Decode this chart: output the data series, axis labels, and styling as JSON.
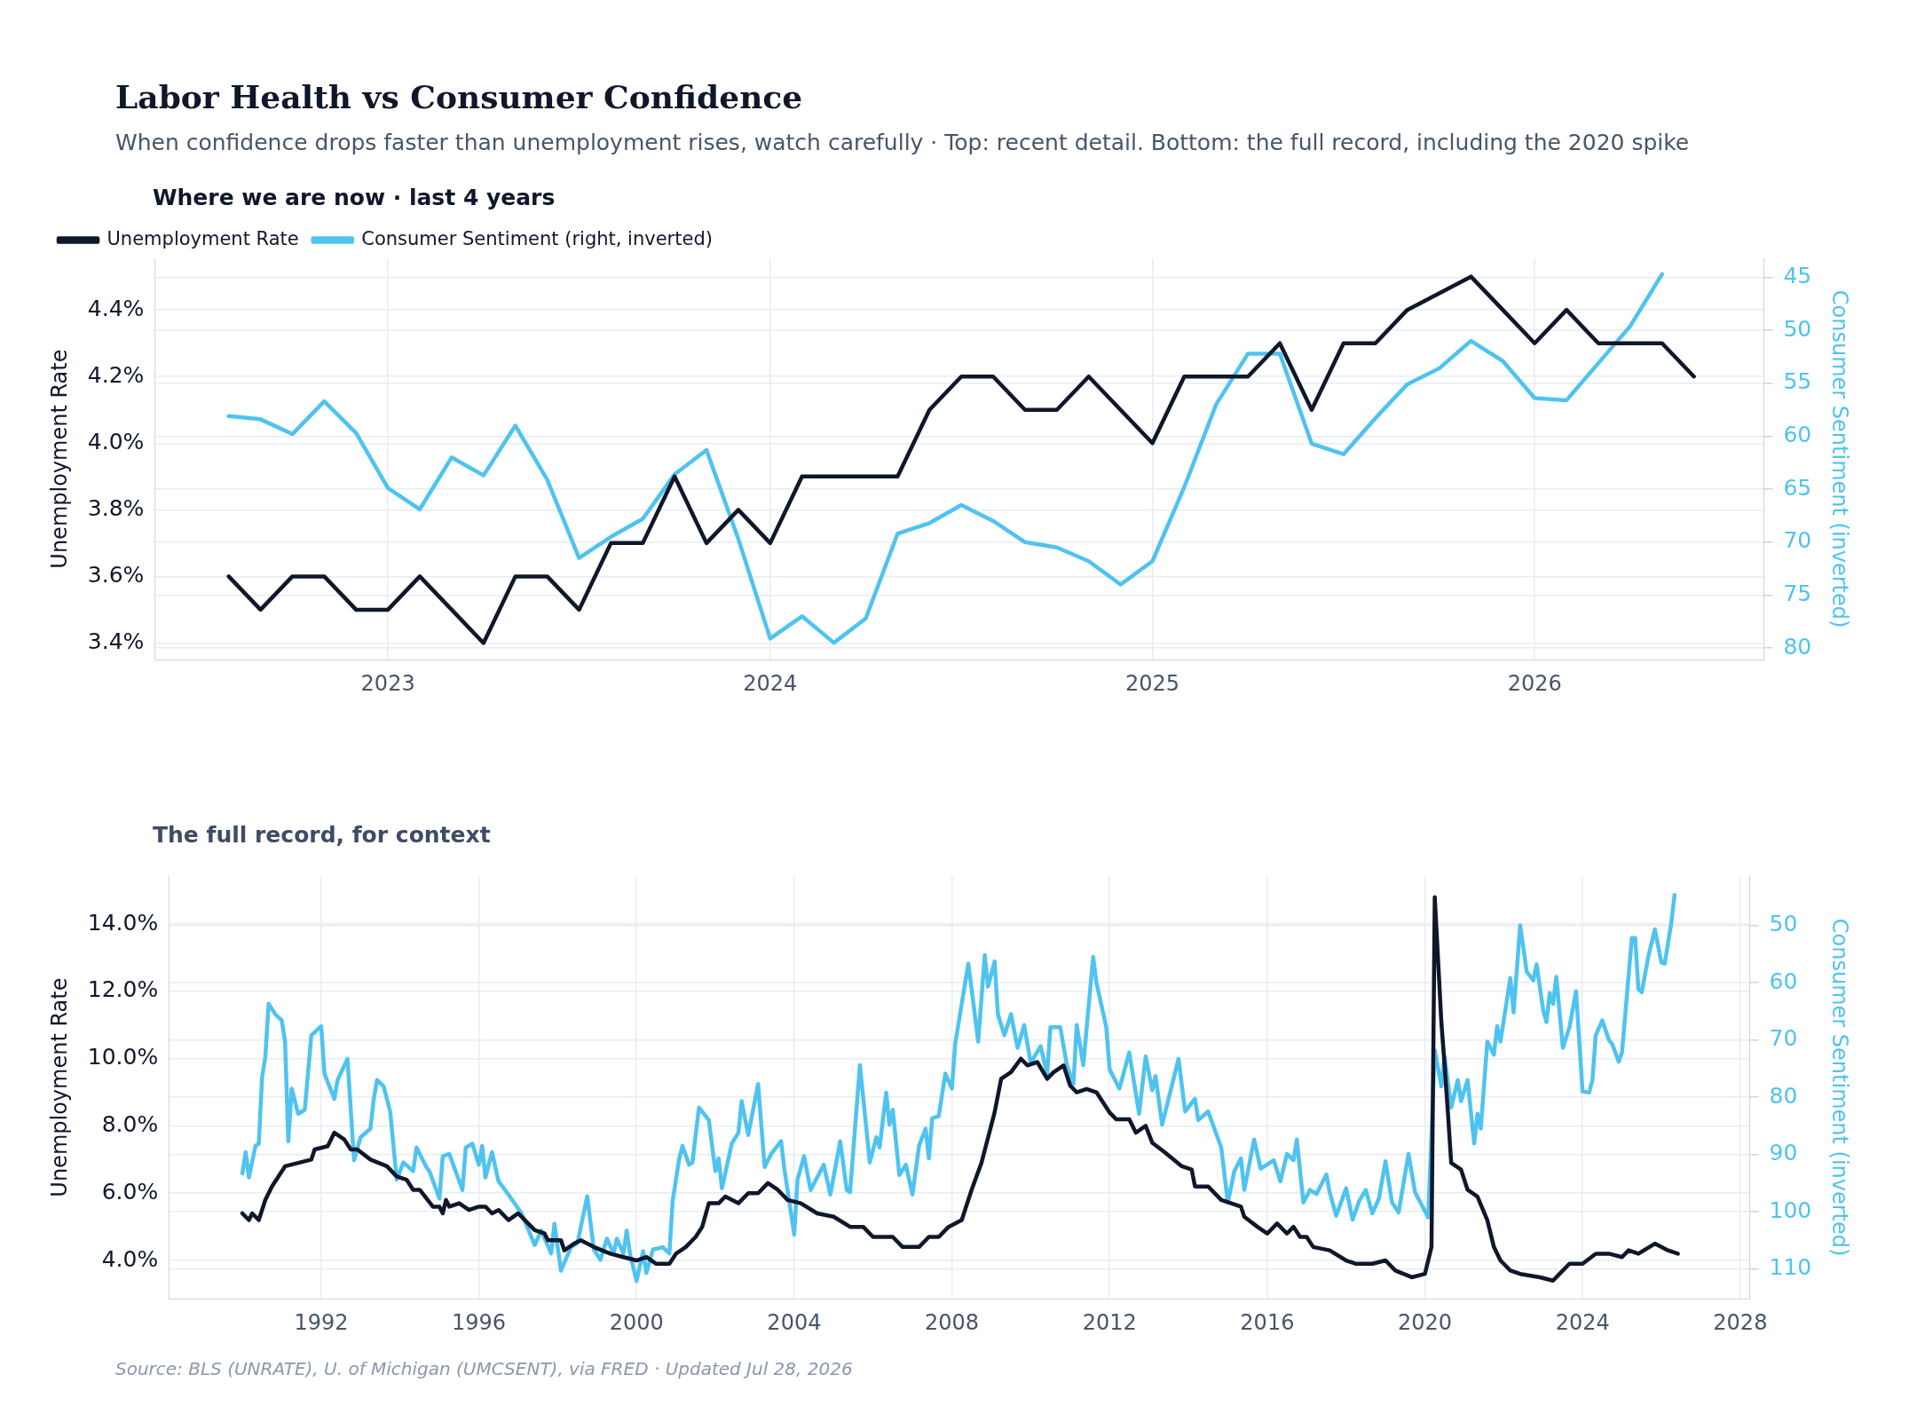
{
  "chart_data": [
    {
      "type": "line",
      "title": "Labor Health vs Consumer Confidence",
      "subtitle": "When confidence drops faster than unemployment rises, watch carefully · Top: recent detail. Bottom: the full record, including the 2020 spike",
      "annotations": [
        "Where we are now · last 4 years"
      ],
      "ylabel": "Unemployment Rate",
      "y2label": "Consumer Sentiment (inverted)",
      "legend": "top left",
      "grid": true,
      "xlim": [
        "2022-05-22",
        "2026-08-07"
      ],
      "xticks": [
        "2023",
        "2024",
        "2025",
        "2026"
      ],
      "ylim": [
        3.35,
        4.555
      ],
      "yticks": [
        {
          "value": 3.4,
          "label": "3.4%"
        },
        {
          "value": 3.6,
          "label": "3.6%"
        },
        {
          "value": 3.8,
          "label": "3.8%"
        },
        {
          "value": 4.0,
          "label": "4.0%"
        },
        {
          "value": 4.2,
          "label": "4.2%"
        },
        {
          "value": 4.4,
          "label": "4.4%"
        }
      ],
      "y2lim": [
        81.1,
        43.2
      ],
      "y2ticks": [
        45,
        50,
        55,
        60,
        65,
        70,
        75,
        80
      ],
      "series": [
        {
          "name": "Unemployment Rate",
          "color": "#0f172a",
          "x": [
            "2022-08",
            "2022-09",
            "2022-10",
            "2022-11",
            "2022-12",
            "2023-01",
            "2023-02",
            "2023-03",
            "2023-04",
            "2023-05",
            "2023-06",
            "2023-07",
            "2023-08",
            "2023-09",
            "2023-10",
            "2023-11",
            "2023-12",
            "2024-01",
            "2024-02",
            "2024-03",
            "2024-04",
            "2024-05",
            "2024-06",
            "2024-07",
            "2024-08",
            "2024-09",
            "2024-10",
            "2024-11",
            "2024-12",
            "2025-01",
            "2025-02",
            "2025-03",
            "2025-04",
            "2025-05",
            "2025-06",
            "2025-07",
            "2025-08",
            "2025-09",
            "2025-11",
            "2025-12",
            "2026-01",
            "2026-02",
            "2026-03",
            "2026-04",
            "2026-05",
            "2026-06"
          ],
          "values": [
            3.6,
            3.5,
            3.6,
            3.6,
            3.5,
            3.5,
            3.6,
            3.5,
            3.4,
            3.6,
            3.6,
            3.5,
            3.7,
            3.7,
            3.9,
            3.7,
            3.8,
            3.7,
            3.9,
            3.9,
            3.9,
            3.9,
            4.1,
            4.2,
            4.2,
            4.1,
            4.1,
            4.2,
            4.1,
            4.0,
            4.2,
            4.2,
            4.2,
            4.3,
            4.1,
            4.3,
            4.3,
            4.4,
            4.5,
            4.4,
            4.3,
            4.4,
            4.3,
            4.3,
            4.3,
            4.2
          ]
        },
        {
          "name": "Consumer Sentiment (right, inverted)",
          "color": "#4fc3f0",
          "axis": "y2",
          "x": [
            "2022-08",
            "2022-09",
            "2022-10",
            "2022-11",
            "2022-12",
            "2023-01",
            "2023-02",
            "2023-03",
            "2023-04",
            "2023-05",
            "2023-06",
            "2023-07",
            "2023-08",
            "2023-09",
            "2023-10",
            "2023-11",
            "2023-12",
            "2024-01",
            "2024-02",
            "2024-03",
            "2024-04",
            "2024-05",
            "2024-06",
            "2024-07",
            "2024-08",
            "2024-09",
            "2024-10",
            "2024-11",
            "2024-12",
            "2025-01",
            "2025-02",
            "2025-03",
            "2025-04",
            "2025-05",
            "2025-06",
            "2025-07",
            "2025-08",
            "2025-09",
            "2025-10",
            "2025-11",
            "2025-12",
            "2026-01",
            "2026-02",
            "2026-03",
            "2026-04",
            "2026-05"
          ],
          "values": [
            58.1,
            58.4,
            59.8,
            56.7,
            59.7,
            64.9,
            66.9,
            62.0,
            63.7,
            59.0,
            64.1,
            71.5,
            69.5,
            67.8,
            63.6,
            61.3,
            69.7,
            79.1,
            77.0,
            79.5,
            77.2,
            69.2,
            68.2,
            66.5,
            68.0,
            70.0,
            70.5,
            71.8,
            74.0,
            71.8,
            64.8,
            57.0,
            52.2,
            52.2,
            60.7,
            61.7,
            58.3,
            55.1,
            53.6,
            51.0,
            52.9,
            56.4,
            56.6,
            53.1,
            49.6,
            44.7
          ]
        }
      ]
    },
    {
      "type": "line",
      "title": "The full record, for context",
      "annotations": [
        "Source: BLS (UNRATE), U. of Michigan (UMCSENT), via FRED · Updated Jul 28, 2026"
      ],
      "ylabel": "Unemployment Rate",
      "y2label": "Consumer Sentiment (inverted)",
      "grid": true,
      "xlim": [
        "1988-02-20",
        "2028-03-28"
      ],
      "xticks": [
        "1992",
        "1996",
        "2000",
        "2004",
        "2008",
        "2012",
        "2016",
        "2020",
        "2024",
        "2028"
      ],
      "ylim": [
        2.86,
        15.43
      ],
      "yticks": [
        {
          "value": 4,
          "label": "4.0%"
        },
        {
          "value": 6,
          "label": "6.0%"
        },
        {
          "value": 8,
          "label": "8.0%"
        },
        {
          "value": 10,
          "label": "10.0%"
        },
        {
          "value": 12,
          "label": "12.0%"
        },
        {
          "value": 14,
          "label": "14.0%"
        }
      ],
      "y2lim": [
        115.2,
        41.4
      ],
      "y2ticks": [
        50,
        60,
        70,
        80,
        90,
        100,
        110
      ],
      "series": [
        {
          "color": "#0f172a",
          "x": [
            "1990-01",
            "1990-03",
            "1990-04",
            "1990-06",
            "1990-08",
            "1990-10",
            "1991-02",
            "1991-06",
            "1991-10",
            "1991-11",
            "1992-03",
            "1992-05",
            "1992-08",
            "1992-10",
            "1992-12",
            "1993-04",
            "1993-09",
            "1993-12",
            "1994-03",
            "1994-05",
            "1994-07",
            "1994-11",
            "1995-01",
            "1995-02",
            "1995-03",
            "1995-04",
            "1995-07",
            "1995-10",
            "1996-01",
            "1996-03",
            "1996-05",
            "1996-07",
            "1996-10",
            "1997-01",
            "1997-04",
            "1997-06",
            "1997-09",
            "1997-10",
            "1998-02",
            "1998-03",
            "1998-06",
            "1998-08",
            "1998-12",
            "1999-05",
            "1999-09",
            "2000-01",
            "2000-04",
            "2000-07",
            "2000-11",
            "2001-01",
            "2001-04",
            "2001-07",
            "2001-09",
            "2001-11",
            "2002-02",
            "2002-04",
            "2002-08",
            "2002-11",
            "2003-02",
            "2003-05",
            "2003-08",
            "2003-11",
            "2004-03",
            "2004-08",
            "2005-01",
            "2005-06",
            "2005-10",
            "2006-01",
            "2006-07",
            "2006-10",
            "2007-03",
            "2007-06",
            "2007-09",
            "2007-12",
            "2008-04",
            "2008-07",
            "2008-10",
            "2009-02",
            "2009-04",
            "2009-07",
            "2009-10",
            "2009-12",
            "2010-03",
            "2010-06",
            "2010-08",
            "2010-11",
            "2011-01",
            "2011-03",
            "2011-06",
            "2011-09",
            "2012-01",
            "2012-03",
            "2012-07",
            "2012-09",
            "2012-12",
            "2013-02",
            "2013-06",
            "2013-11",
            "2014-02",
            "2014-03",
            "2014-07",
            "2014-11",
            "2015-02",
            "2015-05",
            "2015-06",
            "2015-10",
            "2016-01",
            "2016-04",
            "2016-07",
            "2016-09",
            "2016-11",
            "2017-01",
            "2017-03",
            "2017-08",
            "2018-01",
            "2018-04",
            "2018-09",
            "2019-01",
            "2019-04",
            "2019-09",
            "2020-01",
            "2020-03",
            "2020-04",
            "2020-06",
            "2020-07",
            "2020-08",
            "2020-09",
            "2020-12",
            "2021-02",
            "2021-05",
            "2021-08",
            "2021-10",
            "2021-12",
            "2022-03",
            "2022-06",
            "2022-12",
            "2023-04",
            "2023-06",
            "2023-09",
            "2024-01",
            "2024-05",
            "2024-09",
            "2025-01",
            "2025-03",
            "2025-06",
            "2025-11",
            "2026-03",
            "2026-06"
          ],
          "values": [
            5.4,
            5.2,
            5.4,
            5.2,
            5.8,
            6.2,
            6.8,
            6.9,
            7.0,
            7.3,
            7.4,
            7.8,
            7.6,
            7.3,
            7.3,
            7.0,
            6.8,
            6.5,
            6.4,
            6.1,
            6.1,
            5.6,
            5.6,
            5.4,
            5.8,
            5.6,
            5.7,
            5.5,
            5.6,
            5.6,
            5.4,
            5.5,
            5.2,
            5.4,
            5.1,
            4.9,
            4.8,
            4.6,
            4.6,
            4.3,
            4.5,
            4.6,
            4.4,
            4.2,
            4.1,
            4.0,
            4.1,
            3.9,
            3.9,
            4.2,
            4.4,
            4.7,
            5.0,
            5.7,
            5.7,
            5.9,
            5.7,
            6.0,
            6.0,
            6.3,
            6.1,
            5.8,
            5.7,
            5.4,
            5.3,
            5.0,
            5.0,
            4.7,
            4.7,
            4.4,
            4.4,
            4.7,
            4.7,
            5.0,
            5.2,
            6.1,
            6.9,
            8.4,
            9.4,
            9.6,
            10.0,
            9.8,
            9.9,
            9.4,
            9.6,
            9.8,
            9.2,
            9.0,
            9.1,
            9.0,
            8.4,
            8.2,
            8.2,
            7.8,
            8.0,
            7.5,
            7.2,
            6.8,
            6.7,
            6.2,
            6.2,
            5.8,
            5.7,
            5.6,
            5.3,
            5.0,
            4.8,
            5.1,
            4.8,
            5.0,
            4.7,
            4.7,
            4.4,
            4.3,
            4.0,
            3.9,
            3.9,
            4.0,
            3.7,
            3.5,
            3.6,
            4.4,
            14.8,
            11.1,
            9.8,
            8.4,
            6.9,
            6.7,
            6.1,
            5.9,
            5.2,
            4.4,
            4.0,
            3.7,
            3.6,
            3.5,
            3.4,
            3.6,
            3.9,
            3.9,
            4.2,
            4.2,
            4.1,
            4.3,
            4.2,
            4.5,
            4.3,
            4.2
          ]
        },
        {
          "color": "#4fc3f0",
          "axis": "y2",
          "x": [
            "1990-01",
            "1990-02",
            "1990-03",
            "1990-05",
            "1990-06",
            "1990-07",
            "1990-08",
            "1990-09",
            "1990-11",
            "1991-01",
            "1991-02",
            "1991-03",
            "1991-04",
            "1991-06",
            "1991-08",
            "1991-10",
            "1992-01",
            "1992-02",
            "1992-05",
            "1992-06",
            "1992-09",
            "1992-11",
            "1993-01",
            "1993-04",
            "1993-05",
            "1993-06",
            "1993-08",
            "1993-10",
            "1993-12",
            "1994-02",
            "1994-05",
            "1994-06",
            "1994-09",
            "1994-10",
            "1995-01",
            "1995-02",
            "1995-04",
            "1995-08",
            "1995-09",
            "1995-11",
            "1996-01",
            "1996-02",
            "1996-03",
            "1996-05",
            "1996-07",
            "1996-10",
            "1997-02",
            "1997-06",
            "1997-08",
            "1997-11",
            "1997-12",
            "1998-02",
            "1998-05",
            "1998-07",
            "1998-10",
            "1998-12",
            "1999-02",
            "1999-04",
            "1999-06",
            "1999-07",
            "1999-09",
            "1999-10",
            "1999-11",
            "2000-01",
            "2000-03",
            "2000-04",
            "2000-06",
            "2000-09",
            "2000-11",
            "2000-12",
            "2001-02",
            "2001-03",
            "2001-05",
            "2001-06",
            "2001-08",
            "2001-11",
            "2002-01",
            "2002-02",
            "2002-03",
            "2002-06",
            "2002-08",
            "2002-09",
            "2002-11",
            "2003-02",
            "2003-04",
            "2003-06",
            "2003-09",
            "2003-10",
            "2004-01",
            "2004-02",
            "2004-04",
            "2004-06",
            "2004-10",
            "2004-12",
            "2005-03",
            "2005-05",
            "2005-06",
            "2005-09",
            "2005-12",
            "2006-02",
            "2006-03",
            "2006-05",
            "2006-06",
            "2006-07",
            "2006-09",
            "2006-11",
            "2007-01",
            "2007-03",
            "2007-05",
            "2007-06",
            "2007-07",
            "2007-09",
            "2007-11",
            "2008-01",
            "2008-02",
            "2008-06",
            "2008-07",
            "2008-09",
            "2008-11",
            "2008-12",
            "2009-02",
            "2009-03",
            "2009-05",
            "2009-07",
            "2009-09",
            "2009-11",
            "2010-01",
            "2010-04",
            "2010-06",
            "2010-07",
            "2010-10",
            "2010-12",
            "2011-02",
            "2011-03",
            "2011-05",
            "2011-08",
            "2011-09",
            "2011-12",
            "2012-01",
            "2012-04",
            "2012-07",
            "2012-10",
            "2012-12",
            "2013-02",
            "2013-03",
            "2013-05",
            "2013-10",
            "2013-12",
            "2014-03",
            "2014-04",
            "2014-07",
            "2014-11",
            "2015-01",
            "2015-03",
            "2015-05",
            "2015-06",
            "2015-09",
            "2015-11",
            "2016-03",
            "2016-05",
            "2016-07",
            "2016-09",
            "2016-10",
            "2016-12",
            "2017-02",
            "2017-04",
            "2017-07",
            "2017-08",
            "2017-10",
            "2018-01",
            "2018-03",
            "2018-05",
            "2018-07",
            "2018-09",
            "2018-11",
            "2019-01",
            "2019-03",
            "2019-05",
            "2019-08",
            "2019-10",
            "2020-02",
            "2020-04",
            "2020-06",
            "2020-07",
            "2020-09",
            "2020-11",
            "2020-12",
            "2021-02",
            "2021-04",
            "2021-05",
            "2021-06",
            "2021-08",
            "2021-10",
            "2021-11",
            "2021-12",
            "2022-03",
            "2022-04",
            "2022-06",
            "2022-08",
            "2022-10",
            "2022-11",
            "2023-01",
            "2023-02",
            "2023-03",
            "2023-04",
            "2023-05",
            "2023-07",
            "2023-09",
            "2023-11",
            "2024-01",
            "2024-03",
            "2024-04",
            "2024-05",
            "2024-07",
            "2024-09",
            "2024-10",
            "2024-12",
            "2025-01",
            "2025-04",
            "2025-05",
            "2025-06",
            "2025-07",
            "2025-09",
            "2025-11",
            "2026-01",
            "2026-02",
            "2026-04",
            "2026-05"
          ],
          "values": [
            93.3,
            89.6,
            94.0,
            88.5,
            88.1,
            76.6,
            72.9,
            63.7,
            65.5,
            66.6,
            70.3,
            87.7,
            78.5,
            82.9,
            82.2,
            69.2,
            67.6,
            75.9,
            80.3,
            77.0,
            73.3,
            91.0,
            87.0,
            85.5,
            80.3,
            77.0,
            78.1,
            82.5,
            94.4,
            91.4,
            92.9,
            88.8,
            92.2,
            93.0,
            97.7,
            90.3,
            89.9,
            96.2,
            88.8,
            88.1,
            91.8,
            88.5,
            94.0,
            89.6,
            94.7,
            97.0,
            100.3,
            105.8,
            103.3,
            107.3,
            102.1,
            110.3,
            106.2,
            105.5,
            97.3,
            106.6,
            108.4,
            104.7,
            107.3,
            104.7,
            107.3,
            103.3,
            107.3,
            112.1,
            106.9,
            110.7,
            106.6,
            106.2,
            107.3,
            98.1,
            90.7,
            88.5,
            91.8,
            91.4,
            81.8,
            84.0,
            92.9,
            90.7,
            95.9,
            88.1,
            86.2,
            80.7,
            86.6,
            77.7,
            92.2,
            89.9,
            87.7,
            92.5,
            104.0,
            94.4,
            90.3,
            96.2,
            91.8,
            97.0,
            87.7,
            96.2,
            96.6,
            74.4,
            91.4,
            87.0,
            88.8,
            79.2,
            84.8,
            82.2,
            93.6,
            91.8,
            97.0,
            88.5,
            85.5,
            90.7,
            83.7,
            83.3,
            75.9,
            78.5,
            70.7,
            56.7,
            61.1,
            70.3,
            55.2,
            60.7,
            56.3,
            65.5,
            69.2,
            65.5,
            71.4,
            67.4,
            74.0,
            71.1,
            75.9,
            67.8,
            67.8,
            74.4,
            77.7,
            67.4,
            74.4,
            55.5,
            60.0,
            67.8,
            75.1,
            78.5,
            72.2,
            82.9,
            72.9,
            78.8,
            76.3,
            84.8,
            73.3,
            82.5,
            80.3,
            84.0,
            82.5,
            88.8,
            98.4,
            92.9,
            90.7,
            96.2,
            87.4,
            92.5,
            91.0,
            94.7,
            89.9,
            91.0,
            87.4,
            98.4,
            96.2,
            96.9,
            93.5,
            96.6,
            100.7,
            95.9,
            101.4,
            98.1,
            96.2,
            100.3,
            97.7,
            91.2,
            98.4,
            100.1,
            89.9,
            96.6,
            101.0,
            71.8,
            78.1,
            72.9,
            81.8,
            77.0,
            80.7,
            77.0,
            88.1,
            82.9,
            85.5,
            70.3,
            72.6,
            67.6,
            70.3,
            59.2,
            65.2,
            50.0,
            58.1,
            59.6,
            56.8,
            64.8,
            66.9,
            61.8,
            63.7,
            59.0,
            71.4,
            67.8,
            61.5,
            79.0,
            79.2,
            77.0,
            69.2,
            66.6,
            70.0,
            70.7,
            73.8,
            72.2,
            52.2,
            52.2,
            61.1,
            61.7,
            55.5,
            50.7,
            56.5,
            56.7,
            49.6,
            44.7
          ]
        }
      ]
    }
  ]
}
